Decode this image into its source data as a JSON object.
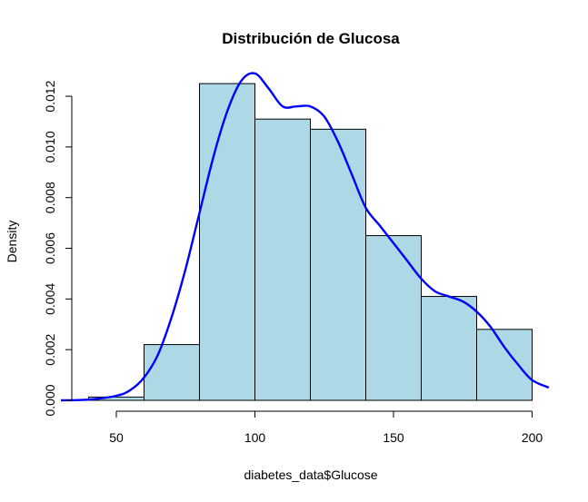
{
  "chart_data": {
    "type": "bar",
    "title": "Distribución de Glucosa",
    "xlabel": "diabetes_data$Glucose",
    "ylabel": "Density",
    "xlim": [
      40,
      200
    ],
    "ylim": [
      0,
      0.0125
    ],
    "x_ticks": [
      "50",
      "100",
      "150",
      "200"
    ],
    "y_ticks": [
      "0.000",
      "0.002",
      "0.004",
      "0.006",
      "0.008",
      "0.010",
      "0.012"
    ],
    "bar_color": "#add8e6",
    "bar_border": "#000000",
    "curve_color": "#0000ff",
    "bins": [
      {
        "from": 40,
        "to": 60,
        "density": 0.00013
      },
      {
        "from": 60,
        "to": 80,
        "density": 0.0022
      },
      {
        "from": 80,
        "to": 100,
        "density": 0.0125
      },
      {
        "from": 100,
        "to": 120,
        "density": 0.0111
      },
      {
        "from": 120,
        "to": 140,
        "density": 0.0107
      },
      {
        "from": 140,
        "to": 160,
        "density": 0.0065
      },
      {
        "from": 160,
        "to": 180,
        "density": 0.0041
      },
      {
        "from": 180,
        "to": 200,
        "density": 0.0028
      }
    ],
    "density_curve": [
      [
        30,
        0.0
      ],
      [
        40,
        3e-05
      ],
      [
        50,
        0.00018
      ],
      [
        55,
        0.0004
      ],
      [
        60,
        0.0009
      ],
      [
        65,
        0.0018
      ],
      [
        70,
        0.0033
      ],
      [
        75,
        0.0052
      ],
      [
        80,
        0.0074
      ],
      [
        85,
        0.0096
      ],
      [
        90,
        0.0114
      ],
      [
        95,
        0.0126
      ],
      [
        100,
        0.0129
      ],
      [
        105,
        0.0123
      ],
      [
        110,
        0.0116
      ],
      [
        115,
        0.0116
      ],
      [
        120,
        0.0116
      ],
      [
        125,
        0.0112
      ],
      [
        130,
        0.0102
      ],
      [
        135,
        0.0089
      ],
      [
        140,
        0.0076
      ],
      [
        145,
        0.0069
      ],
      [
        150,
        0.0062
      ],
      [
        155,
        0.0055
      ],
      [
        160,
        0.0048
      ],
      [
        165,
        0.0043
      ],
      [
        170,
        0.0041
      ],
      [
        175,
        0.0039
      ],
      [
        180,
        0.0035
      ],
      [
        185,
        0.0029
      ],
      [
        190,
        0.0021
      ],
      [
        195,
        0.0014
      ],
      [
        200,
        0.0008
      ],
      [
        206,
        0.0005
      ]
    ]
  }
}
